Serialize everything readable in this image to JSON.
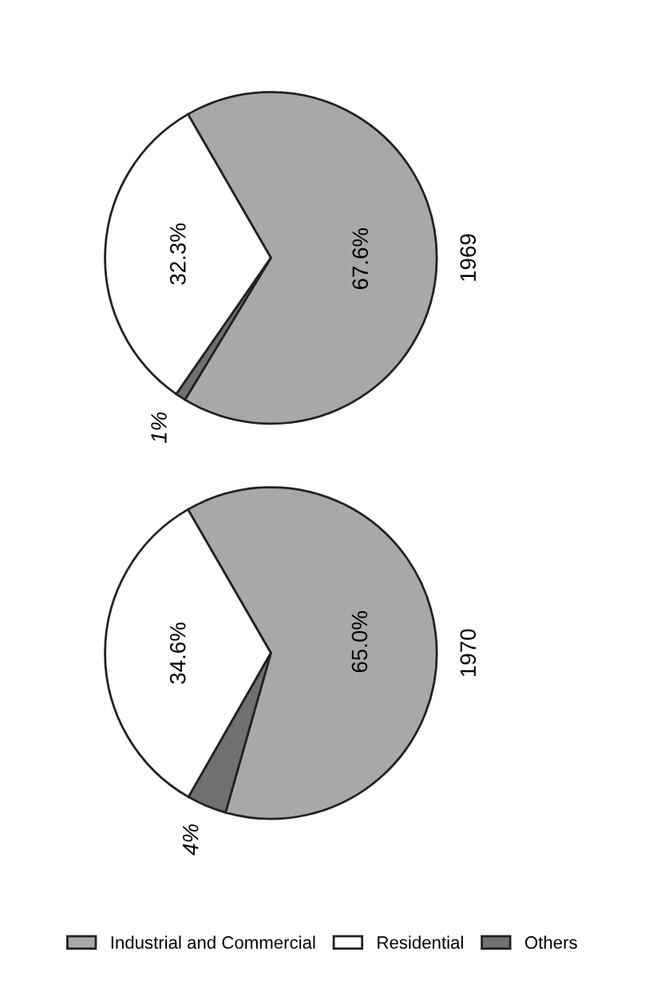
{
  "chart_data": [
    {
      "type": "pie",
      "title": "1969",
      "categories": [
        "Industrial and Commercial",
        "Residential",
        "Others"
      ],
      "values": [
        67.6,
        32.3,
        1
      ],
      "colors": [
        "#a8a8a8",
        "#ffffff",
        "#707070"
      ],
      "value_labels": [
        "67.6%",
        "32.3%",
        "1%"
      ],
      "legend": "bottom"
    },
    {
      "type": "pie",
      "title": "1970",
      "categories": [
        null,
        null,
        null
      ],
      "values": [
        65.0,
        34.6,
        4
      ],
      "colors": [
        "#a8a8a8",
        "#ffffff",
        "#707070"
      ],
      "value_labels": [
        "65.0%",
        "34.6%",
        "4%"
      ]
    }
  ]
}
